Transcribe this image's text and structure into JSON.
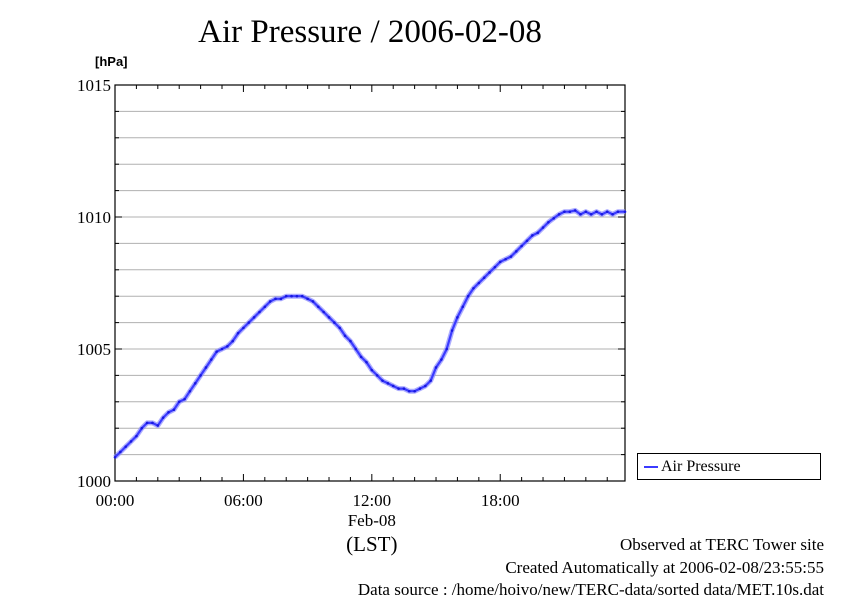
{
  "chart_data": {
    "type": "line",
    "title": "Air Pressure / 2006-02-08",
    "ylabel": "[hPa]",
    "ylim": [
      1000,
      1015
    ],
    "y_ticks": [
      1000,
      1005,
      1010,
      1015
    ],
    "y_tick_labels": [
      "1000",
      "1005",
      "1010",
      "1015"
    ],
    "y_minor_step": 1,
    "xlim": [
      0,
      23.83
    ],
    "x_ticks": [
      0,
      6,
      12,
      18
    ],
    "x_tick_labels": [
      "00:00",
      "06:00",
      "12:00",
      "18:00"
    ],
    "x_date_label": "Feb-08",
    "xlabel": "(LST)",
    "grid": true,
    "legend_position": "right, below plot",
    "colors": {
      "series": "#3b3bff"
    },
    "series": [
      {
        "name": "Air Pressure",
        "x": [
          0,
          0.25,
          0.5,
          0.75,
          1.0,
          1.25,
          1.5,
          1.75,
          2.0,
          2.25,
          2.5,
          2.75,
          3.0,
          3.25,
          3.5,
          3.75,
          4.0,
          4.25,
          4.5,
          4.75,
          5.0,
          5.25,
          5.5,
          5.75,
          6.0,
          6.25,
          6.5,
          6.75,
          7.0,
          7.25,
          7.5,
          7.75,
          8.0,
          8.25,
          8.5,
          8.75,
          9.0,
          9.25,
          9.5,
          9.75,
          10.0,
          10.25,
          10.5,
          10.75,
          11.0,
          11.25,
          11.5,
          11.75,
          12.0,
          12.25,
          12.5,
          12.75,
          13.0,
          13.25,
          13.5,
          13.75,
          14.0,
          14.25,
          14.5,
          14.75,
          15.0,
          15.25,
          15.5,
          15.75,
          16.0,
          16.25,
          16.5,
          16.75,
          17.0,
          17.25,
          17.5,
          17.75,
          18.0,
          18.25,
          18.5,
          18.75,
          19.0,
          19.25,
          19.5,
          19.75,
          20.0,
          20.25,
          20.5,
          20.75,
          21.0,
          21.25,
          21.5,
          21.75,
          22.0,
          22.25,
          22.5,
          22.75,
          23.0,
          23.25,
          23.5,
          23.83
        ],
        "values": [
          1000.9,
          1001.1,
          1001.3,
          1001.5,
          1001.7,
          1002.0,
          1002.2,
          1002.2,
          1002.1,
          1002.4,
          1002.6,
          1002.7,
          1003.0,
          1003.1,
          1003.4,
          1003.7,
          1004.0,
          1004.3,
          1004.6,
          1004.9,
          1005.0,
          1005.1,
          1005.3,
          1005.6,
          1005.8,
          1006.0,
          1006.2,
          1006.4,
          1006.6,
          1006.8,
          1006.9,
          1006.9,
          1007.0,
          1007.0,
          1007.0,
          1007.0,
          1006.9,
          1006.8,
          1006.6,
          1006.4,
          1006.2,
          1006.0,
          1005.8,
          1005.5,
          1005.3,
          1005.0,
          1004.7,
          1004.5,
          1004.2,
          1004.0,
          1003.8,
          1003.7,
          1003.6,
          1003.5,
          1003.5,
          1003.4,
          1003.4,
          1003.5,
          1003.6,
          1003.8,
          1004.3,
          1004.6,
          1005.0,
          1005.7,
          1006.2,
          1006.6,
          1007.0,
          1007.3,
          1007.5,
          1007.7,
          1007.9,
          1008.1,
          1008.3,
          1008.4,
          1008.5,
          1008.7,
          1008.9,
          1009.1,
          1009.3,
          1009.4,
          1009.6,
          1009.8,
          1009.95,
          1010.1,
          1010.2,
          1010.2,
          1010.25,
          1010.1,
          1010.2,
          1010.1,
          1010.2,
          1010.1,
          1010.2,
          1010.1,
          1010.2,
          1010.2
        ]
      }
    ]
  },
  "footer": {
    "observed": "Observed at TERC Tower site",
    "created": "Created Automatically at 2006-02-08/23:55:55",
    "source": "Data source : /home/hoivo/new/TERC-data/sorted  data/MET.10s.dat"
  }
}
